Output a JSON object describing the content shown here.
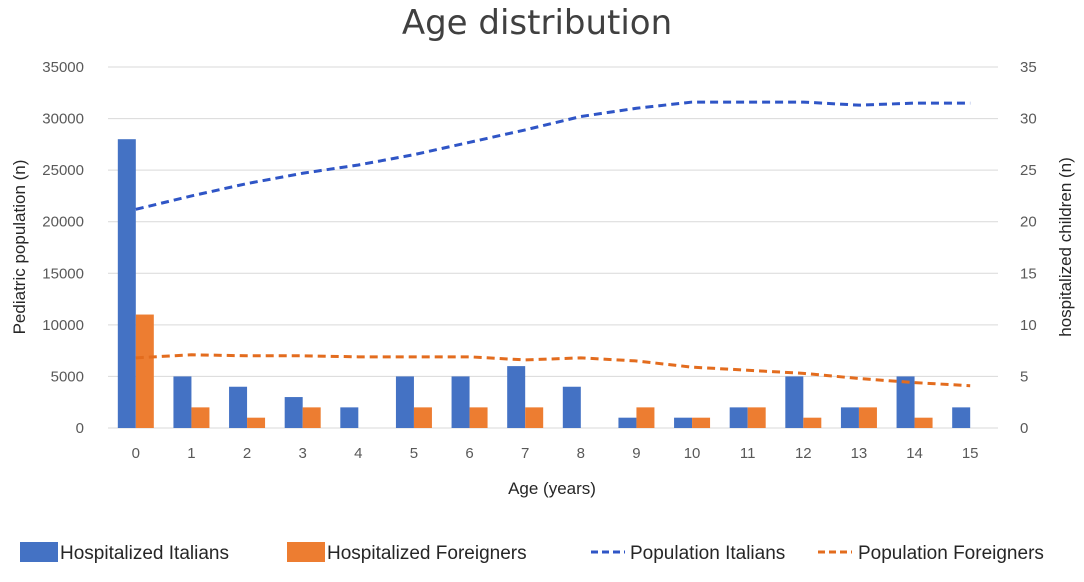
{
  "chart_data": {
    "type": "bar",
    "title": "Age distribution",
    "xlabel": "Age (years)",
    "ylabel_left": "Pediatric population (n)",
    "ylabel_right": "hospitalized children (n)",
    "categories": [
      "0",
      "1",
      "2",
      "3",
      "4",
      "5",
      "6",
      "7",
      "8",
      "9",
      "10",
      "11",
      "12",
      "13",
      "14",
      "15"
    ],
    "ylim_left": [
      0,
      35000
    ],
    "yticks_left": [
      "0",
      "5000",
      "10000",
      "15000",
      "20000",
      "25000",
      "30000",
      "35000"
    ],
    "ylim_right": [
      0,
      35
    ],
    "yticks_right": [
      "0",
      "5",
      "10",
      "15",
      "20",
      "25",
      "30",
      "35"
    ],
    "grid": true,
    "legend_position": "bottom",
    "series": [
      {
        "name": "Hospitalized Italians",
        "kind": "bar",
        "axis": "right",
        "color": "#4472C4",
        "values": [
          28,
          5,
          4,
          3,
          2,
          5,
          5,
          6,
          4,
          1,
          1,
          2,
          5,
          2,
          5,
          2
        ]
      },
      {
        "name": "Hospitalized Foreigners",
        "kind": "bar",
        "axis": "right",
        "color": "#ED7D31",
        "values": [
          11,
          2,
          1,
          2,
          0,
          2,
          2,
          2,
          0,
          2,
          1,
          2,
          1,
          2,
          1,
          0
        ]
      },
      {
        "name": "Population Italians",
        "kind": "line",
        "style": "dashed",
        "axis": "left",
        "color": "#2F55C6",
        "values": [
          21200,
          22500,
          23700,
          24700,
          25500,
          26500,
          27700,
          28900,
          30200,
          31000,
          31600,
          31600,
          31600,
          31300,
          31500,
          31500
        ]
      },
      {
        "name": "Population Foreigners",
        "kind": "line",
        "style": "dashed",
        "axis": "left",
        "color": "#E36C1E",
        "values": [
          6800,
          7100,
          7000,
          7000,
          6900,
          6900,
          6900,
          6600,
          6800,
          6500,
          5900,
          5600,
          5300,
          4800,
          4400,
          4100
        ]
      }
    ]
  }
}
